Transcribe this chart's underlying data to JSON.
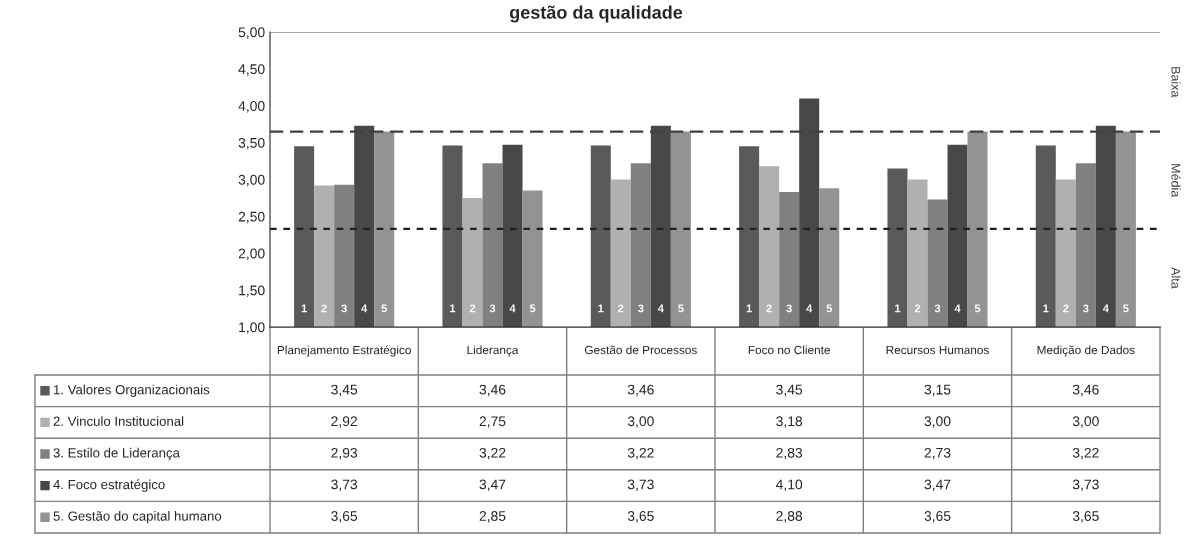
{
  "chart_data": {
    "type": "bar",
    "title": "gestão da qualidade",
    "categories": [
      "Planejamento Estratégico",
      "Liderança",
      "Gestão de Processos",
      "Foco no Cliente",
      "Recursos Humanos",
      "Medição de Dados"
    ],
    "series": [
      {
        "name": "1. Valores Organizacionais",
        "color": "#5a5a5a",
        "values": [
          3.45,
          3.46,
          3.46,
          3.45,
          3.15,
          3.46
        ],
        "value_labels": [
          "3,45",
          "3,46",
          "3,46",
          "3,45",
          "3,15",
          "3,46"
        ]
      },
      {
        "name": "2. Vinculo Institucional",
        "color": "#b0b0b0",
        "values": [
          2.92,
          2.75,
          3.0,
          3.18,
          3.0,
          3.0
        ],
        "value_labels": [
          "2,92",
          "2,75",
          "3,00",
          "3,18",
          "3,00",
          "3,00"
        ]
      },
      {
        "name": "3. Estilo de Liderança",
        "color": "#808080",
        "values": [
          2.93,
          3.22,
          3.22,
          2.83,
          2.73,
          3.22
        ],
        "value_labels": [
          "2,93",
          "3,22",
          "3,22",
          "2,83",
          "2,73",
          "3,22"
        ]
      },
      {
        "name": "4. Foco estratégico",
        "color": "#484848",
        "values": [
          3.73,
          3.47,
          3.73,
          4.1,
          3.47,
          3.73
        ],
        "value_labels": [
          "3,73",
          "3,47",
          "3,73",
          "4,10",
          "3,47",
          "3,73"
        ]
      },
      {
        "name": "5. Gestão do capital humano",
        "color": "#939393",
        "values": [
          3.65,
          2.85,
          3.65,
          2.88,
          3.65,
          3.65
        ],
        "value_labels": [
          "3,65",
          "2,85",
          "3,65",
          "2,88",
          "3,65",
          "3,65"
        ]
      }
    ],
    "ylim": [
      1,
      5
    ],
    "yticks": [
      {
        "value": 1,
        "label": "1,00"
      },
      {
        "value": 1.5,
        "label": "1,50"
      },
      {
        "value": 2,
        "label": "2,00"
      },
      {
        "value": 2.5,
        "label": "2,50"
      },
      {
        "value": 3,
        "label": "3,00"
      },
      {
        "value": 3.5,
        "label": "3,50"
      },
      {
        "value": 4,
        "label": "4,00"
      },
      {
        "value": 4.5,
        "label": "4,50"
      },
      {
        "value": 5,
        "label": "5,00"
      }
    ],
    "ref_lines": [
      {
        "axis": "y",
        "value": 3.65,
        "color": "#404040",
        "line_style": "dashed"
      },
      {
        "axis": "y",
        "value": 2.33,
        "color": "#202020",
        "line_style": "dotted"
      }
    ],
    "annotations": [
      "Baixa",
      "Média",
      "Alta",
      "1",
      "1",
      "1",
      "1",
      "1",
      "1",
      "2",
      "2",
      "2",
      "2",
      "2",
      "2",
      "3",
      "3",
      "3",
      "3",
      "3",
      "3",
      "4",
      "4",
      "4",
      "4",
      "4",
      "4",
      "5",
      "5",
      "5",
      "5",
      "5",
      "5"
    ],
    "legend": "bottom",
    "grid": false
  }
}
